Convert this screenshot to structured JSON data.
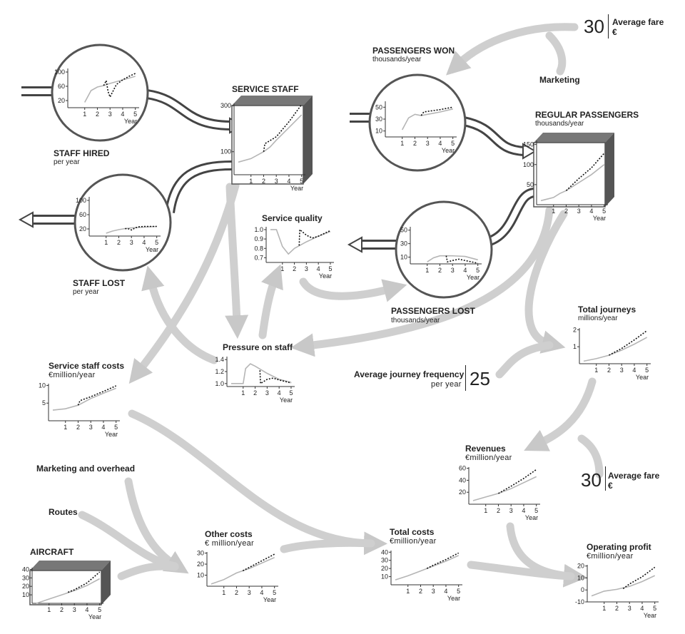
{
  "labels": {
    "passengers_won": "PASSENGERS WON",
    "passengers_won_unit": "thousands/year",
    "service_staff": "SERVICE STAFF",
    "staff_hired": "STAFF HIRED",
    "staff_hired_unit": "per year",
    "staff_lost": "STAFF LOST",
    "staff_lost_unit": "per year",
    "regular_passengers": "REGULAR PASSENGERS",
    "regular_passengers_unit": "thousands/year",
    "marketing": "Marketing",
    "service_quality": "Service quality",
    "passengers_lost": "PASSENGERS LOST",
    "passengers_lost_unit": "thousands/year",
    "pressure_on_staff": "Pressure on staff",
    "total_journeys": "Total journeys",
    "total_journeys_unit": "millions/year",
    "service_staff_costs": "Service staff costs",
    "service_staff_costs_unit": "€million/year",
    "avg_journey_freq": "Average journey frequency",
    "avg_journey_freq_unit": "per year",
    "avg_journey_freq_value": "25",
    "marketing_overhead": "Marketing and overhead",
    "routes": "Routes",
    "revenues": "Revenues",
    "revenues_unit": "€million/year",
    "aircraft": "AIRCRAFT",
    "other_costs": "Other costs",
    "other_costs_unit": "€ million/year",
    "total_costs": "Total costs",
    "total_costs_unit": "€million/year",
    "operating_profit": "Operating profit",
    "operating_profit_unit": "€million/year",
    "avg_fare_top_value": "30",
    "avg_fare_top_label": "Average fare",
    "avg_fare_top_unit": "€",
    "avg_fare_mid_value": "30",
    "avg_fare_mid_label": "Average fare",
    "avg_fare_mid_unit": "€"
  },
  "chart_data": [
    {
      "id": "staff_hired",
      "type": "line",
      "xlabel": "Year",
      "xticks": [
        "1",
        "2",
        "3",
        "4",
        "5"
      ],
      "yticks": [
        "20",
        "60",
        "100"
      ],
      "ylim": [
        0,
        110
      ],
      "base": [
        [
          1,
          15
        ],
        [
          1.5,
          48
        ],
        [
          2,
          58
        ],
        [
          2.5,
          62
        ],
        [
          3,
          68
        ],
        [
          3.5,
          73
        ],
        [
          4,
          78
        ],
        [
          4.5,
          83
        ],
        [
          5,
          88
        ]
      ],
      "alt": [
        [
          2.5,
          62
        ],
        [
          2.7,
          76
        ],
        [
          2.85,
          45
        ],
        [
          3,
          30
        ],
        [
          3.5,
          65
        ],
        [
          4,
          78
        ],
        [
          4.5,
          88
        ],
        [
          5,
          96
        ]
      ]
    },
    {
      "id": "staff_lost",
      "type": "line",
      "xlabel": "Year",
      "xticks": [
        "1",
        "2",
        "3",
        "4",
        "5"
      ],
      "yticks": [
        "20",
        "60",
        "100"
      ],
      "ylim": [
        0,
        110
      ],
      "base": [
        [
          1,
          8
        ],
        [
          1.5,
          14
        ],
        [
          2,
          18
        ],
        [
          2.5,
          21
        ],
        [
          3,
          23
        ],
        [
          4,
          25
        ],
        [
          5,
          27
        ]
      ],
      "alt": [
        [
          2.5,
          21
        ],
        [
          2.8,
          20
        ],
        [
          3,
          17
        ],
        [
          3.3,
          23
        ],
        [
          3.6,
          26
        ],
        [
          4,
          27
        ],
        [
          5,
          27
        ]
      ]
    },
    {
      "id": "service_staff",
      "type": "line",
      "xlabel": "Year",
      "xticks": [
        "1",
        "2",
        "3",
        "4",
        "5"
      ],
      "yticks": [
        "100",
        "300"
      ],
      "ylim": [
        0,
        310
      ],
      "base": [
        [
          0,
          55
        ],
        [
          1,
          70
        ],
        [
          2,
          100
        ],
        [
          2.5,
          120
        ],
        [
          3,
          150
        ],
        [
          4,
          205
        ],
        [
          5,
          260
        ]
      ],
      "alt": [
        [
          2,
          100
        ],
        [
          2.1,
          135
        ],
        [
          3,
          165
        ],
        [
          4,
          230
        ],
        [
          5,
          305
        ]
      ]
    },
    {
      "id": "passengers_won",
      "type": "line",
      "xlabel": "Year",
      "xticks": [
        "1",
        "2",
        "3",
        "4",
        "5"
      ],
      "yticks": [
        "10",
        "30",
        "50"
      ],
      "ylim": [
        0,
        60
      ],
      "base": [
        [
          1,
          12
        ],
        [
          1.5,
          32
        ],
        [
          2,
          38
        ],
        [
          2.5,
          36
        ],
        [
          3,
          38
        ],
        [
          3.5,
          40
        ],
        [
          4,
          42
        ],
        [
          5,
          47
        ]
      ],
      "alt": [
        [
          2.5,
          36
        ],
        [
          2.7,
          42
        ],
        [
          3,
          43
        ],
        [
          4,
          46
        ],
        [
          5,
          50
        ]
      ]
    },
    {
      "id": "regular_passengers",
      "type": "line",
      "xlabel": "Year",
      "xticks": [
        "1",
        "2",
        "3",
        "4",
        "5"
      ],
      "yticks": [
        "50",
        "100",
        "150"
      ],
      "ylim": [
        0,
        160
      ],
      "base": [
        [
          0,
          10
        ],
        [
          1,
          18
        ],
        [
          1.5,
          28
        ],
        [
          2,
          35
        ],
        [
          3,
          55
        ],
        [
          4,
          75
        ],
        [
          5,
          100
        ]
      ],
      "alt": [
        [
          2,
          35
        ],
        [
          3,
          65
        ],
        [
          4,
          92
        ],
        [
          5,
          128
        ]
      ]
    },
    {
      "id": "passengers_lost",
      "type": "line",
      "xlabel": "Year",
      "xticks": [
        "1",
        "2",
        "3",
        "4",
        "5"
      ],
      "yticks": [
        "10",
        "30",
        "50"
      ],
      "ylim": [
        0,
        55
      ],
      "base": [
        [
          1,
          3
        ],
        [
          1.5,
          9
        ],
        [
          2,
          12
        ],
        [
          2.5,
          12
        ],
        [
          3,
          12
        ],
        [
          4,
          11
        ],
        [
          5,
          6
        ]
      ],
      "alt": [
        [
          2.5,
          12
        ],
        [
          2.6,
          3
        ],
        [
          3,
          5
        ],
        [
          3.5,
          7
        ],
        [
          4,
          5
        ],
        [
          4.5,
          3
        ],
        [
          5,
          1
        ]
      ]
    },
    {
      "id": "service_quality",
      "type": "line",
      "xlabel": "Year",
      "xticks": [
        "1",
        "2",
        "3",
        "4",
        "5"
      ],
      "yticks": [
        "0.7",
        "0.8",
        "0.9",
        "1.0"
      ],
      "ylim": [
        0.65,
        1.03
      ],
      "base": [
        [
          0,
          1.0
        ],
        [
          0.5,
          1.0
        ],
        [
          1,
          0.82
        ],
        [
          1.5,
          0.74
        ],
        [
          2,
          0.8
        ],
        [
          3,
          0.87
        ],
        [
          4,
          0.93
        ],
        [
          5,
          0.98
        ]
      ],
      "alt": [
        [
          2.4,
          0.83
        ],
        [
          2.45,
          1.0
        ],
        [
          3,
          0.94
        ],
        [
          3.5,
          0.91
        ],
        [
          4,
          0.93
        ],
        [
          5,
          0.99
        ]
      ]
    },
    {
      "id": "pressure_on_staff",
      "type": "line",
      "xlabel": "Year",
      "xticks": [
        "1",
        "2",
        "3",
        "4",
        "5"
      ],
      "yticks": [
        "1.0",
        "1.2",
        "1.4"
      ],
      "ylim": [
        0.95,
        1.45
      ],
      "base": [
        [
          0,
          1.0
        ],
        [
          1,
          1.0
        ],
        [
          1.2,
          1.25
        ],
        [
          1.6,
          1.33
        ],
        [
          2,
          1.29
        ],
        [
          3,
          1.17
        ],
        [
          4,
          1.07
        ],
        [
          5,
          1.02
        ]
      ],
      "alt": [
        [
          2.4,
          1.22
        ],
        [
          2.45,
          1.0
        ],
        [
          3,
          1.07
        ],
        [
          3.5,
          1.09
        ],
        [
          4,
          1.06
        ],
        [
          5,
          1.01
        ]
      ]
    },
    {
      "id": "total_journeys",
      "type": "line",
      "xlabel": "Year",
      "xticks": [
        "1",
        "2",
        "3",
        "4",
        "5"
      ],
      "yticks": [
        "1",
        "2"
      ],
      "ylim": [
        0,
        2.1
      ],
      "base": [
        [
          0,
          0.15
        ],
        [
          1,
          0.3
        ],
        [
          2,
          0.5
        ],
        [
          3,
          0.8
        ],
        [
          4,
          1.15
        ],
        [
          5,
          1.55
        ]
      ],
      "alt": [
        [
          2,
          0.5
        ],
        [
          3,
          0.9
        ],
        [
          4,
          1.4
        ],
        [
          5,
          1.95
        ]
      ]
    },
    {
      "id": "service_staff_costs",
      "type": "line",
      "xlabel": "Year",
      "xticks": [
        "1",
        "2",
        "3",
        "4",
        "5"
      ],
      "yticks": [
        "5",
        "10"
      ],
      "ylim": [
        0,
        10.5
      ],
      "base": [
        [
          0,
          3
        ],
        [
          1,
          3.4
        ],
        [
          2,
          4.4
        ],
        [
          3,
          6.3
        ],
        [
          4,
          7.8
        ],
        [
          5,
          9.2
        ]
      ],
      "alt": [
        [
          2,
          4.4
        ],
        [
          2.15,
          5.7
        ],
        [
          3,
          6.8
        ],
        [
          4,
          8.3
        ],
        [
          5,
          9.9
        ]
      ]
    },
    {
      "id": "revenues",
      "type": "line",
      "xlabel": "Year",
      "xticks": [
        "1",
        "2",
        "3",
        "4",
        "5"
      ],
      "yticks": [
        "20",
        "40",
        "60"
      ],
      "ylim": [
        0,
        62
      ],
      "base": [
        [
          0,
          6
        ],
        [
          1,
          12
        ],
        [
          2,
          18
        ],
        [
          3,
          26
        ],
        [
          4,
          36
        ],
        [
          5,
          46
        ]
      ],
      "alt": [
        [
          2,
          18
        ],
        [
          3,
          30
        ],
        [
          4,
          43
        ],
        [
          5,
          58
        ]
      ]
    },
    {
      "id": "aircraft",
      "type": "line",
      "xlabel": "Year",
      "xticks": [
        "1",
        "2",
        "3",
        "4",
        "5"
      ],
      "yticks": [
        "10",
        "20",
        "30",
        "40"
      ],
      "ylim": [
        0,
        42
      ],
      "base": [
        [
          0,
          0
        ],
        [
          1,
          5
        ],
        [
          2,
          10
        ],
        [
          3,
          15
        ],
        [
          4,
          21
        ],
        [
          5,
          29
        ]
      ],
      "alt": [
        [
          2.5,
          13
        ],
        [
          3,
          16
        ],
        [
          4,
          24
        ],
        [
          5,
          37
        ]
      ]
    },
    {
      "id": "other_costs",
      "type": "line",
      "xlabel": "Year",
      "xticks": [
        "1",
        "2",
        "3",
        "4",
        "5"
      ],
      "yticks": [
        "10",
        "20",
        "30"
      ],
      "ylim": [
        0,
        31
      ],
      "base": [
        [
          0,
          2
        ],
        [
          1,
          6
        ],
        [
          2,
          12
        ],
        [
          3,
          16
        ],
        [
          4,
          21
        ],
        [
          5,
          26
        ]
      ],
      "alt": [
        [
          2.5,
          14
        ],
        [
          3,
          17
        ],
        [
          4,
          23
        ],
        [
          5,
          29
        ]
      ]
    },
    {
      "id": "total_costs",
      "type": "line",
      "xlabel": "Year",
      "xticks": [
        "1",
        "2",
        "3",
        "4",
        "5"
      ],
      "yticks": [
        "10",
        "20",
        "30",
        "40"
      ],
      "ylim": [
        0,
        42
      ],
      "base": [
        [
          0,
          6
        ],
        [
          1,
          11
        ],
        [
          2,
          17
        ],
        [
          3,
          23
        ],
        [
          4,
          29
        ],
        [
          5,
          36
        ]
      ],
      "alt": [
        [
          2.5,
          20
        ],
        [
          3,
          24
        ],
        [
          4,
          31
        ],
        [
          5,
          39
        ]
      ]
    },
    {
      "id": "operating_profit",
      "type": "line",
      "xlabel": "Year",
      "xticks": [
        "1",
        "2",
        "3",
        "4",
        "5"
      ],
      "yticks": [
        "-10",
        "0",
        "10",
        "20"
      ],
      "ylim": [
        -10,
        21
      ],
      "base": [
        [
          0,
          -5
        ],
        [
          1,
          -1
        ],
        [
          2,
          0.5
        ],
        [
          3,
          3
        ],
        [
          4,
          7
        ],
        [
          5,
          12
        ]
      ],
      "alt": [
        [
          2.5,
          1
        ],
        [
          3,
          5
        ],
        [
          4,
          11
        ],
        [
          5,
          19
        ]
      ]
    }
  ]
}
